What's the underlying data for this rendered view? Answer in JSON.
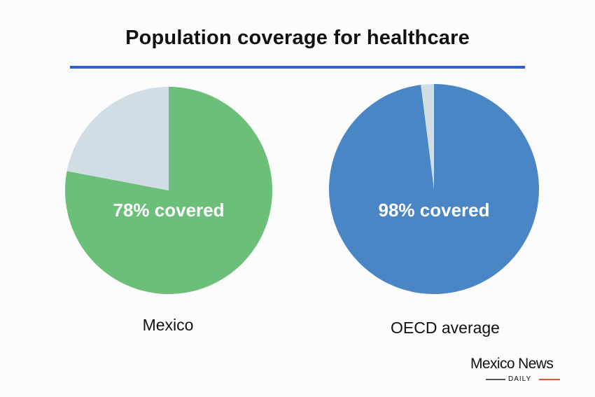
{
  "chart_data": {
    "type": "pie",
    "title": "Population coverage for healthcare",
    "charts": [
      {
        "label": "Mexico",
        "center_label": "78% covered",
        "slices": [
          {
            "name": "covered",
            "value": 78,
            "color": "#6bbf78"
          },
          {
            "name": "not covered",
            "value": 22,
            "color": "#d0dde4"
          }
        ]
      },
      {
        "label": "OECD average",
        "center_label": "98% covered",
        "slices": [
          {
            "name": "covered",
            "value": 98,
            "color": "#4a86c6"
          },
          {
            "name": "not covered",
            "value": 2,
            "color": "#d0dde4"
          }
        ]
      }
    ]
  },
  "branding": {
    "name": "Mexico News",
    "sub": "DAILY",
    "accent_colors": [
      "#555555",
      "#e0543c"
    ]
  },
  "colors": {
    "title_rule": "#2f5fc8",
    "background": "#fcfcfc"
  }
}
